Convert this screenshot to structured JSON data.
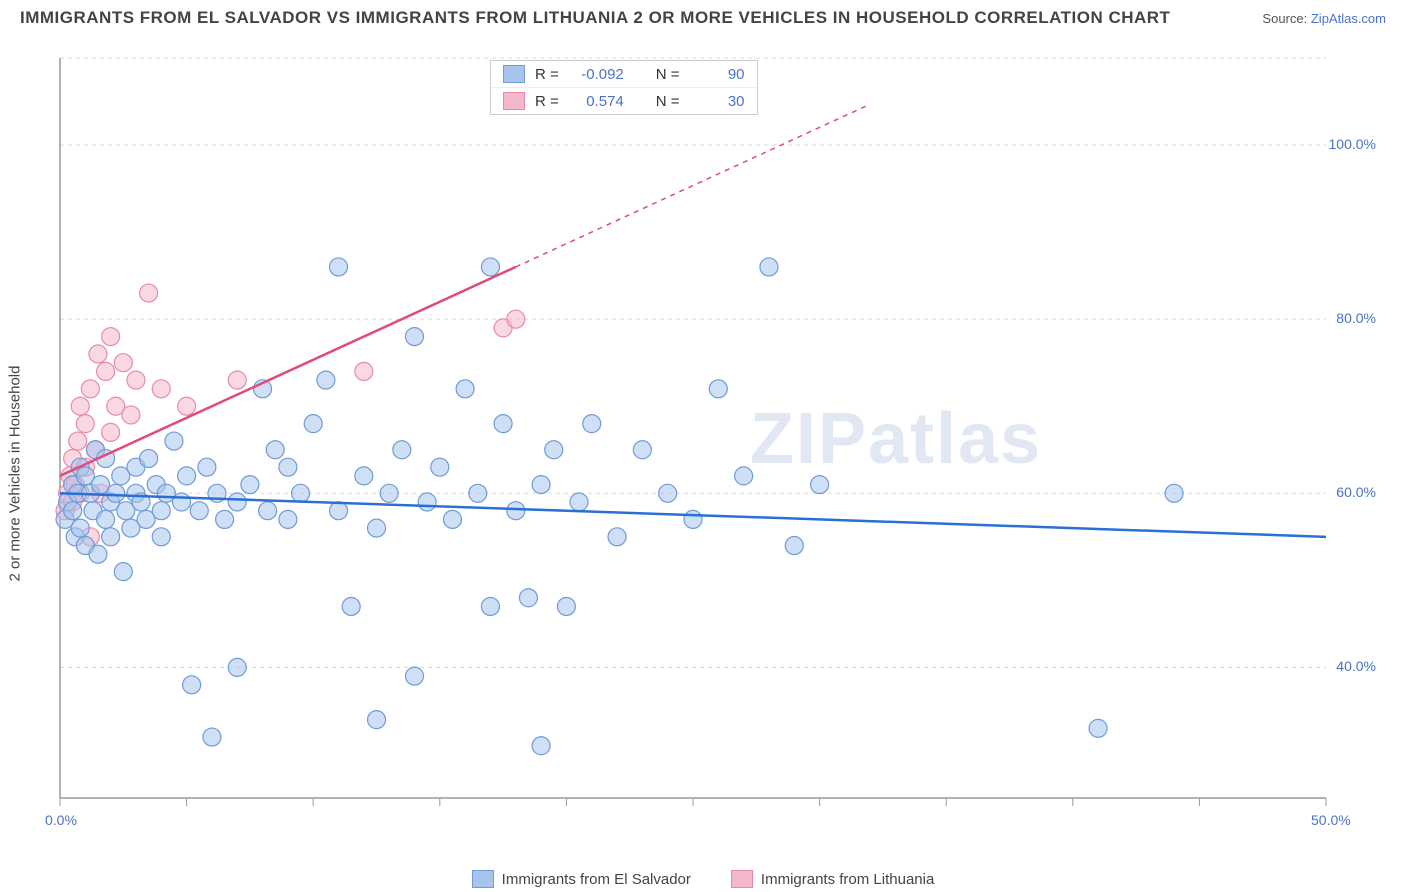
{
  "title": "IMMIGRANTS FROM EL SALVADOR VS IMMIGRANTS FROM LITHUANIA 2 OR MORE VEHICLES IN HOUSEHOLD CORRELATION CHART",
  "source_label": "Source:",
  "source_name": "ZipAtlas.com",
  "y_axis_label": "2 or more Vehicles in Household",
  "watermark": "ZIPatlas",
  "plot": {
    "x_min": 0,
    "x_max": 50,
    "y_min": 25,
    "y_max": 110,
    "x_ticks": [
      0,
      5,
      10,
      15,
      20,
      25,
      30,
      35,
      40,
      45,
      50
    ],
    "x_tick_labels": {
      "0": "0.0%",
      "50": "50.0%"
    },
    "y_ticks": [
      40,
      60,
      80,
      100
    ],
    "y_tick_labels": {
      "40": "40.0%",
      "60": "60.0%",
      "80": "80.0%",
      "100": "100.0%"
    },
    "grid_color": "#d8d8d8",
    "axis_color": "#999999",
    "background": "#ffffff"
  },
  "series": [
    {
      "name": "Immigrants from El Salvador",
      "key": "el-salvador",
      "color_fill": "#a7c5ec",
      "color_stroke": "#6f9bd8",
      "line_color": "#2a6fd6",
      "r_value": "-0.092",
      "n_value": "90",
      "regression": {
        "x1": 0,
        "y1": 60,
        "x2": 50,
        "y2": 55
      },
      "marker_radius": 9,
      "marker_opacity": 0.55,
      "points": [
        [
          0.2,
          57
        ],
        [
          0.3,
          59
        ],
        [
          0.5,
          58
        ],
        [
          0.5,
          61
        ],
        [
          0.6,
          55
        ],
        [
          0.7,
          60
        ],
        [
          0.8,
          63
        ],
        [
          0.8,
          56
        ],
        [
          1.0,
          62
        ],
        [
          1.0,
          54
        ],
        [
          1.2,
          60
        ],
        [
          1.3,
          58
        ],
        [
          1.4,
          65
        ],
        [
          1.5,
          53
        ],
        [
          1.6,
          61
        ],
        [
          1.8,
          57
        ],
        [
          1.8,
          64
        ],
        [
          2.0,
          59
        ],
        [
          2.0,
          55
        ],
        [
          2.2,
          60
        ],
        [
          2.4,
          62
        ],
        [
          2.5,
          51
        ],
        [
          2.6,
          58
        ],
        [
          2.8,
          56
        ],
        [
          3.0,
          63
        ],
        [
          3.0,
          60
        ],
        [
          3.2,
          59
        ],
        [
          3.4,
          57
        ],
        [
          3.5,
          64
        ],
        [
          3.8,
          61
        ],
        [
          4.0,
          58
        ],
        [
          4.0,
          55
        ],
        [
          4.2,
          60
        ],
        [
          4.5,
          66
        ],
        [
          4.8,
          59
        ],
        [
          5.0,
          62
        ],
        [
          5.2,
          38
        ],
        [
          5.5,
          58
        ],
        [
          5.8,
          63
        ],
        [
          6.0,
          32
        ],
        [
          6.2,
          60
        ],
        [
          6.5,
          57
        ],
        [
          7.0,
          59
        ],
        [
          7.0,
          40
        ],
        [
          7.5,
          61
        ],
        [
          8.0,
          72
        ],
        [
          8.2,
          58
        ],
        [
          8.5,
          65
        ],
        [
          9.0,
          57
        ],
        [
          9.0,
          63
        ],
        [
          9.5,
          60
        ],
        [
          10.0,
          68
        ],
        [
          10.5,
          73
        ],
        [
          11.0,
          86
        ],
        [
          11.0,
          58
        ],
        [
          11.5,
          47
        ],
        [
          12.0,
          62
        ],
        [
          12.5,
          34
        ],
        [
          12.5,
          56
        ],
        [
          13.0,
          60
        ],
        [
          13.5,
          65
        ],
        [
          14.0,
          78
        ],
        [
          14.0,
          39
        ],
        [
          14.5,
          59
        ],
        [
          15.0,
          63
        ],
        [
          15.5,
          57
        ],
        [
          16.0,
          72
        ],
        [
          16.5,
          60
        ],
        [
          17.0,
          86
        ],
        [
          17.0,
          47
        ],
        [
          17.5,
          68
        ],
        [
          18.0,
          58
        ],
        [
          18.5,
          48
        ],
        [
          19.0,
          31
        ],
        [
          19.0,
          61
        ],
        [
          19.5,
          65
        ],
        [
          20.0,
          47
        ],
        [
          20.5,
          59
        ],
        [
          21.0,
          68
        ],
        [
          22.0,
          55
        ],
        [
          23.0,
          65
        ],
        [
          24.0,
          60
        ],
        [
          25.0,
          57
        ],
        [
          26.0,
          72
        ],
        [
          27.0,
          62
        ],
        [
          28.0,
          86
        ],
        [
          29.0,
          54
        ],
        [
          30.0,
          61
        ],
        [
          41.0,
          33
        ],
        [
          44.0,
          60
        ]
      ]
    },
    {
      "name": "Immigrants from Lithuania",
      "key": "lithuania",
      "color_fill": "#f5b8ca",
      "color_stroke": "#e88aa6",
      "line_color": "#e14b78",
      "r_value": "0.574",
      "n_value": "30",
      "regression": {
        "x1": 0,
        "y1": 62,
        "x2": 18,
        "y2": 86
      },
      "regression_ext": {
        "x1": 18,
        "y1": 86,
        "x2": 32,
        "y2": 104.7
      },
      "marker_radius": 9,
      "marker_opacity": 0.55,
      "points": [
        [
          0.2,
          58
        ],
        [
          0.3,
          60
        ],
        [
          0.4,
          62
        ],
        [
          0.5,
          59
        ],
        [
          0.5,
          64
        ],
        [
          0.6,
          61
        ],
        [
          0.7,
          66
        ],
        [
          0.8,
          60
        ],
        [
          0.8,
          70
        ],
        [
          1.0,
          63
        ],
        [
          1.0,
          68
        ],
        [
          1.2,
          55
        ],
        [
          1.2,
          72
        ],
        [
          1.4,
          65
        ],
        [
          1.5,
          76
        ],
        [
          1.6,
          60
        ],
        [
          1.8,
          74
        ],
        [
          2.0,
          78
        ],
        [
          2.0,
          67
        ],
        [
          2.2,
          70
        ],
        [
          2.5,
          75
        ],
        [
          2.8,
          69
        ],
        [
          3.0,
          73
        ],
        [
          3.5,
          83
        ],
        [
          4.0,
          72
        ],
        [
          5.0,
          70
        ],
        [
          7.0,
          73
        ],
        [
          12.0,
          74
        ],
        [
          17.5,
          79
        ],
        [
          18.0,
          80
        ]
      ]
    }
  ],
  "stats_legend": {
    "r_label": "R =",
    "n_label": "N ="
  },
  "bottom_legend_labels": [
    "Immigrants from El Salvador",
    "Immigrants from Lithuania"
  ]
}
